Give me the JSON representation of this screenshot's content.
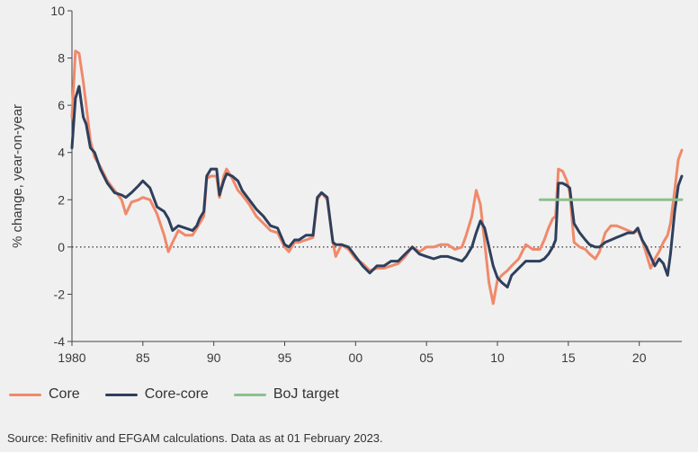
{
  "chart_data": {
    "type": "line",
    "title": "",
    "xlabel": "",
    "ylabel": "% change, year-on-year",
    "xlim": [
      1980,
      2023
    ],
    "ylim": [
      -4,
      10
    ],
    "xticks": [
      1980,
      1985,
      1990,
      1995,
      2000,
      2005,
      2010,
      2015,
      2020
    ],
    "xtick_labels": [
      "1980",
      "85",
      "90",
      "95",
      "00",
      "05",
      "10",
      "15",
      "20"
    ],
    "yticks": [
      -4,
      -2,
      0,
      2,
      4,
      6,
      8,
      10
    ],
    "grid": false,
    "legend": "bottom",
    "series": [
      {
        "name": "Core",
        "color": "#f0896a",
        "points": [
          [
            1980.0,
            5.5
          ],
          [
            1980.25,
            8.3
          ],
          [
            1980.5,
            8.2
          ],
          [
            1980.8,
            7.0
          ],
          [
            1981.0,
            6.0
          ],
          [
            1981.3,
            4.5
          ],
          [
            1981.6,
            3.8
          ],
          [
            1982.0,
            3.4
          ],
          [
            1982.5,
            2.8
          ],
          [
            1983.0,
            2.4
          ],
          [
            1983.5,
            2.0
          ],
          [
            1983.8,
            1.4
          ],
          [
            1984.2,
            1.9
          ],
          [
            1984.7,
            2.0
          ],
          [
            1985.0,
            2.1
          ],
          [
            1985.5,
            2.0
          ],
          [
            1986.0,
            1.4
          ],
          [
            1986.5,
            0.5
          ],
          [
            1986.8,
            -0.2
          ],
          [
            1987.1,
            0.2
          ],
          [
            1987.5,
            0.7
          ],
          [
            1988.0,
            0.5
          ],
          [
            1988.5,
            0.5
          ],
          [
            1988.8,
            0.8
          ],
          [
            1989.0,
            1.0
          ],
          [
            1989.3,
            1.3
          ],
          [
            1989.5,
            2.9
          ],
          [
            1989.8,
            3.0
          ],
          [
            1990.2,
            3.0
          ],
          [
            1990.4,
            2.1
          ],
          [
            1990.7,
            3.0
          ],
          [
            1990.9,
            3.3
          ],
          [
            1991.3,
            2.9
          ],
          [
            1991.7,
            2.4
          ],
          [
            1992.0,
            2.2
          ],
          [
            1992.5,
            1.8
          ],
          [
            1993.0,
            1.3
          ],
          [
            1993.5,
            1.0
          ],
          [
            1994.0,
            0.7
          ],
          [
            1994.5,
            0.6
          ],
          [
            1995.0,
            0.0
          ],
          [
            1995.3,
            -0.2
          ],
          [
            1995.7,
            0.2
          ],
          [
            1996.0,
            0.2
          ],
          [
            1996.5,
            0.3
          ],
          [
            1997.0,
            0.4
          ],
          [
            1997.3,
            2.0
          ],
          [
            1997.6,
            2.3
          ],
          [
            1998.0,
            2.0
          ],
          [
            1998.4,
            0.2
          ],
          [
            1998.6,
            -0.4
          ],
          [
            1999.0,
            0.1
          ],
          [
            1999.5,
            -0.1
          ],
          [
            2000.0,
            -0.5
          ],
          [
            2000.5,
            -0.7
          ],
          [
            2001.0,
            -1.0
          ],
          [
            2001.5,
            -0.9
          ],
          [
            2002.0,
            -0.9
          ],
          [
            2002.5,
            -0.8
          ],
          [
            2003.0,
            -0.7
          ],
          [
            2003.5,
            -0.4
          ],
          [
            2004.0,
            0.0
          ],
          [
            2004.5,
            -0.2
          ],
          [
            2005.0,
            0.0
          ],
          [
            2005.5,
            0.0
          ],
          [
            2006.0,
            0.1
          ],
          [
            2006.5,
            0.1
          ],
          [
            2007.0,
            -0.1
          ],
          [
            2007.5,
            0.0
          ],
          [
            2007.8,
            0.5
          ],
          [
            2008.2,
            1.3
          ],
          [
            2008.5,
            2.4
          ],
          [
            2008.8,
            1.8
          ],
          [
            2009.1,
            0.2
          ],
          [
            2009.4,
            -1.5
          ],
          [
            2009.7,
            -2.4
          ],
          [
            2010.0,
            -1.4
          ],
          [
            2010.3,
            -1.2
          ],
          [
            2010.7,
            -1.0
          ],
          [
            2011.0,
            -0.8
          ],
          [
            2011.5,
            -0.5
          ],
          [
            2012.0,
            0.1
          ],
          [
            2012.5,
            -0.1
          ],
          [
            2013.0,
            -0.1
          ],
          [
            2013.3,
            0.3
          ],
          [
            2013.6,
            0.8
          ],
          [
            2013.9,
            1.2
          ],
          [
            2014.1,
            1.3
          ],
          [
            2014.3,
            3.3
          ],
          [
            2014.6,
            3.2
          ],
          [
            2014.9,
            2.8
          ],
          [
            2015.1,
            2.3
          ],
          [
            2015.4,
            0.2
          ],
          [
            2015.8,
            0.0
          ],
          [
            2016.2,
            -0.1
          ],
          [
            2016.5,
            -0.3
          ],
          [
            2016.9,
            -0.5
          ],
          [
            2017.2,
            -0.2
          ],
          [
            2017.6,
            0.6
          ],
          [
            2018.0,
            0.9
          ],
          [
            2018.4,
            0.9
          ],
          [
            2018.8,
            0.8
          ],
          [
            2019.2,
            0.7
          ],
          [
            2019.6,
            0.6
          ],
          [
            2019.9,
            0.7
          ],
          [
            2020.2,
            0.3
          ],
          [
            2020.5,
            -0.3
          ],
          [
            2020.8,
            -0.9
          ],
          [
            2021.1,
            -0.5
          ],
          [
            2021.4,
            -0.2
          ],
          [
            2021.7,
            0.2
          ],
          [
            2022.0,
            0.5
          ],
          [
            2022.2,
            1.0
          ],
          [
            2022.5,
            2.4
          ],
          [
            2022.75,
            3.7
          ],
          [
            2023.0,
            4.1
          ]
        ]
      },
      {
        "name": "Core-core",
        "color": "#2e3f5c",
        "points": [
          [
            1980.0,
            4.2
          ],
          [
            1980.25,
            6.3
          ],
          [
            1980.5,
            6.8
          ],
          [
            1980.8,
            5.5
          ],
          [
            1981.0,
            5.2
          ],
          [
            1981.3,
            4.2
          ],
          [
            1981.6,
            4.0
          ],
          [
            1982.0,
            3.3
          ],
          [
            1982.5,
            2.7
          ],
          [
            1983.0,
            2.3
          ],
          [
            1983.5,
            2.2
          ],
          [
            1983.8,
            2.1
          ],
          [
            1984.2,
            2.3
          ],
          [
            1984.7,
            2.6
          ],
          [
            1985.0,
            2.8
          ],
          [
            1985.5,
            2.5
          ],
          [
            1986.0,
            1.7
          ],
          [
            1986.5,
            1.5
          ],
          [
            1986.8,
            1.2
          ],
          [
            1987.1,
            0.7
          ],
          [
            1987.5,
            0.9
          ],
          [
            1988.0,
            0.8
          ],
          [
            1988.5,
            0.7
          ],
          [
            1988.8,
            0.9
          ],
          [
            1989.0,
            1.2
          ],
          [
            1989.3,
            1.5
          ],
          [
            1989.5,
            3.0
          ],
          [
            1989.8,
            3.3
          ],
          [
            1990.2,
            3.3
          ],
          [
            1990.4,
            2.2
          ],
          [
            1990.7,
            2.8
          ],
          [
            1990.9,
            3.1
          ],
          [
            1991.3,
            3.0
          ],
          [
            1991.7,
            2.8
          ],
          [
            1992.0,
            2.4
          ],
          [
            1992.5,
            2.0
          ],
          [
            1993.0,
            1.6
          ],
          [
            1993.5,
            1.3
          ],
          [
            1994.0,
            0.9
          ],
          [
            1994.5,
            0.8
          ],
          [
            1995.0,
            0.1
          ],
          [
            1995.3,
            0.0
          ],
          [
            1995.7,
            0.3
          ],
          [
            1996.0,
            0.3
          ],
          [
            1996.5,
            0.5
          ],
          [
            1997.0,
            0.5
          ],
          [
            1997.3,
            2.1
          ],
          [
            1997.6,
            2.3
          ],
          [
            1998.0,
            2.1
          ],
          [
            1998.4,
            0.2
          ],
          [
            1998.6,
            0.1
          ],
          [
            1999.0,
            0.1
          ],
          [
            1999.5,
            0.0
          ],
          [
            2000.0,
            -0.4
          ],
          [
            2000.5,
            -0.8
          ],
          [
            2001.0,
            -1.1
          ],
          [
            2001.5,
            -0.8
          ],
          [
            2002.0,
            -0.8
          ],
          [
            2002.5,
            -0.6
          ],
          [
            2003.0,
            -0.6
          ],
          [
            2003.5,
            -0.3
          ],
          [
            2004.0,
            0.0
          ],
          [
            2004.5,
            -0.3
          ],
          [
            2005.0,
            -0.4
          ],
          [
            2005.5,
            -0.5
          ],
          [
            2006.0,
            -0.4
          ],
          [
            2006.5,
            -0.4
          ],
          [
            2007.0,
            -0.5
          ],
          [
            2007.5,
            -0.6
          ],
          [
            2007.8,
            -0.4
          ],
          [
            2008.2,
            0.0
          ],
          [
            2008.5,
            0.6
          ],
          [
            2008.8,
            1.1
          ],
          [
            2009.1,
            0.8
          ],
          [
            2009.4,
            0.0
          ],
          [
            2009.7,
            -0.8
          ],
          [
            2010.0,
            -1.3
          ],
          [
            2010.3,
            -1.5
          ],
          [
            2010.7,
            -1.7
          ],
          [
            2011.0,
            -1.2
          ],
          [
            2011.5,
            -0.9
          ],
          [
            2012.0,
            -0.6
          ],
          [
            2012.5,
            -0.6
          ],
          [
            2013.0,
            -0.6
          ],
          [
            2013.3,
            -0.5
          ],
          [
            2013.6,
            -0.3
          ],
          [
            2013.9,
            0.0
          ],
          [
            2014.1,
            0.3
          ],
          [
            2014.3,
            2.7
          ],
          [
            2014.6,
            2.7
          ],
          [
            2014.9,
            2.6
          ],
          [
            2015.1,
            2.5
          ],
          [
            2015.4,
            1.0
          ],
          [
            2015.8,
            0.6
          ],
          [
            2016.2,
            0.3
          ],
          [
            2016.5,
            0.1
          ],
          [
            2016.9,
            0.0
          ],
          [
            2017.2,
            0.0
          ],
          [
            2017.6,
            0.2
          ],
          [
            2018.0,
            0.3
          ],
          [
            2018.4,
            0.4
          ],
          [
            2018.8,
            0.5
          ],
          [
            2019.2,
            0.6
          ],
          [
            2019.6,
            0.6
          ],
          [
            2019.9,
            0.8
          ],
          [
            2020.2,
            0.3
          ],
          [
            2020.5,
            0.0
          ],
          [
            2020.8,
            -0.4
          ],
          [
            2021.1,
            -0.8
          ],
          [
            2021.4,
            -0.5
          ],
          [
            2021.7,
            -0.7
          ],
          [
            2022.0,
            -1.2
          ],
          [
            2022.2,
            -0.3
          ],
          [
            2022.5,
            1.5
          ],
          [
            2022.75,
            2.6
          ],
          [
            2023.0,
            3.0
          ]
        ]
      },
      {
        "name": "BoJ target",
        "color": "#8dc08c",
        "points": [
          [
            2013.0,
            2.0
          ],
          [
            2023.0,
            2.0
          ]
        ]
      }
    ]
  },
  "source_note": "Source: Refinitiv and EFGAM calculations. Data as at 01 February 2023."
}
